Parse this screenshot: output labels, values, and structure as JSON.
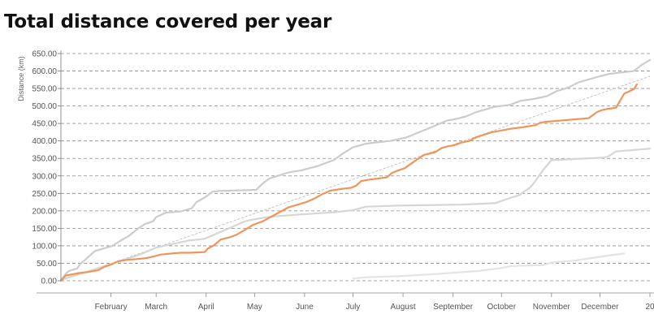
{
  "title": "Total distance covered per year",
  "colors": {
    "highlight": "#f0955a",
    "previous_years": [
      "#cccccc",
      "#d6d6d6",
      "#e4e4e4",
      "#eeeeee"
    ],
    "trend": "#b5b5b5",
    "grid": "#8a8a8a"
  },
  "chart_data": {
    "type": "line",
    "title": "Total distance covered per year",
    "ylabel": "Distance (km)",
    "xlabel": "",
    "ylim": [
      0,
      650
    ],
    "xlim_day_of_year": [
      1,
      366
    ],
    "grid": "horizontal dashed",
    "y_ticks": [
      "0.00",
      "50.00",
      "100.00",
      "150.00",
      "200.00",
      "250.00",
      "300.00",
      "350.00",
      "400.00",
      "450.00",
      "500.00",
      "550.00",
      "600.00",
      "650.00"
    ],
    "x_ticks": [
      {
        "day": 32,
        "label": "February"
      },
      {
        "day": 60,
        "label": "March"
      },
      {
        "day": 91,
        "label": "April"
      },
      {
        "day": 121,
        "label": "May"
      },
      {
        "day": 152,
        "label": "June"
      },
      {
        "day": 182,
        "label": "July"
      },
      {
        "day": 213,
        "label": "August"
      },
      {
        "day": 244,
        "label": "September"
      },
      {
        "day": 274,
        "label": "October"
      },
      {
        "day": 305,
        "label": "November"
      },
      {
        "day": 335,
        "label": "December"
      },
      {
        "day": 366,
        "label": "20"
      }
    ],
    "trend_line": {
      "x": [
        1,
        366
      ],
      "y": [
        0,
        585
      ]
    },
    "series": [
      {
        "role": "previous",
        "x": [
          1,
          4,
          6,
          11,
          13,
          18,
          22,
          28,
          33,
          38,
          43,
          49,
          53,
          58,
          60,
          66,
          75,
          82,
          85,
          90,
          95,
          99,
          122,
          126,
          130,
          134,
          142,
          150,
          160,
          170,
          176,
          182,
          190,
          197,
          205,
          215,
          223,
          230,
          235,
          240,
          245,
          252,
          258,
          264,
          270,
          279,
          286,
          294,
          302,
          308,
          315,
          322,
          335,
          341,
          356,
          361,
          366
        ],
        "y": [
          2,
          20,
          28,
          35,
          48,
          68,
          85,
          93,
          100,
          115,
          128,
          150,
          162,
          170,
          182,
          195,
          198,
          207,
          225,
          238,
          255,
          257,
          260,
          278,
          292,
          298,
          310,
          316,
          328,
          345,
          365,
          382,
          392,
          396,
          400,
          410,
          425,
          438,
          448,
          458,
          462,
          470,
          482,
          490,
          498,
          503,
          515,
          520,
          528,
          542,
          552,
          568,
          585,
          592,
          600,
          618,
          632
        ]
      },
      {
        "role": "previous",
        "x": [
          1,
          10,
          20,
          30,
          40,
          50,
          55,
          60,
          70,
          80,
          90,
          100,
          110,
          115,
          120,
          130,
          150,
          170,
          182,
          190,
          210,
          250,
          270,
          280,
          285,
          292,
          295,
          300,
          305,
          336,
          340,
          345,
          366
        ],
        "y": [
          3,
          15,
          30,
          45,
          60,
          75,
          85,
          95,
          105,
          115,
          120,
          140,
          160,
          170,
          175,
          183,
          190,
          196,
          202,
          212,
          215,
          218,
          222,
          238,
          245,
          268,
          285,
          318,
          345,
          352,
          355,
          370,
          378
        ]
      },
      {
        "role": "previous",
        "x": [
          182,
          190,
          210,
          230,
          260,
          272,
          280,
          300,
          305,
          320,
          330,
          340,
          350
        ],
        "y": [
          6,
          10,
          13,
          18,
          28,
          35,
          42,
          45,
          52,
          58,
          65,
          72,
          78
        ]
      },
      {
        "role": "current",
        "x": [
          1,
          4,
          8,
          12,
          18,
          24,
          28,
          33,
          36,
          42,
          48,
          54,
          59,
          63,
          70,
          75,
          80,
          85,
          90,
          92,
          96,
          100,
          106,
          110,
          116,
          120,
          126,
          130,
          136,
          142,
          148,
          153,
          158,
          163,
          168,
          174,
          177,
          181,
          184,
          187,
          193,
          197,
          203,
          206,
          209,
          214,
          218,
          222,
          226,
          233,
          237,
          241,
          245,
          249,
          254,
          258,
          262,
          268,
          274,
          280,
          288,
          295,
          298,
          302,
          310,
          320,
          328,
          333,
          336,
          340,
          345,
          350,
          356,
          358
        ],
        "y": [
          0,
          15,
          18,
          22,
          25,
          30,
          40,
          48,
          55,
          60,
          62,
          65,
          70,
          75,
          78,
          80,
          80,
          81,
          82,
          92,
          102,
          118,
          125,
          132,
          148,
          160,
          170,
          180,
          195,
          210,
          218,
          225,
          235,
          248,
          258,
          262,
          264,
          266,
          272,
          285,
          290,
          292,
          296,
          308,
          314,
          322,
          335,
          348,
          360,
          368,
          380,
          385,
          388,
          395,
          400,
          410,
          416,
          425,
          430,
          435,
          440,
          445,
          452,
          455,
          458,
          462,
          465,
          482,
          488,
          492,
          495,
          535,
          548,
          562
        ]
      }
    ]
  }
}
